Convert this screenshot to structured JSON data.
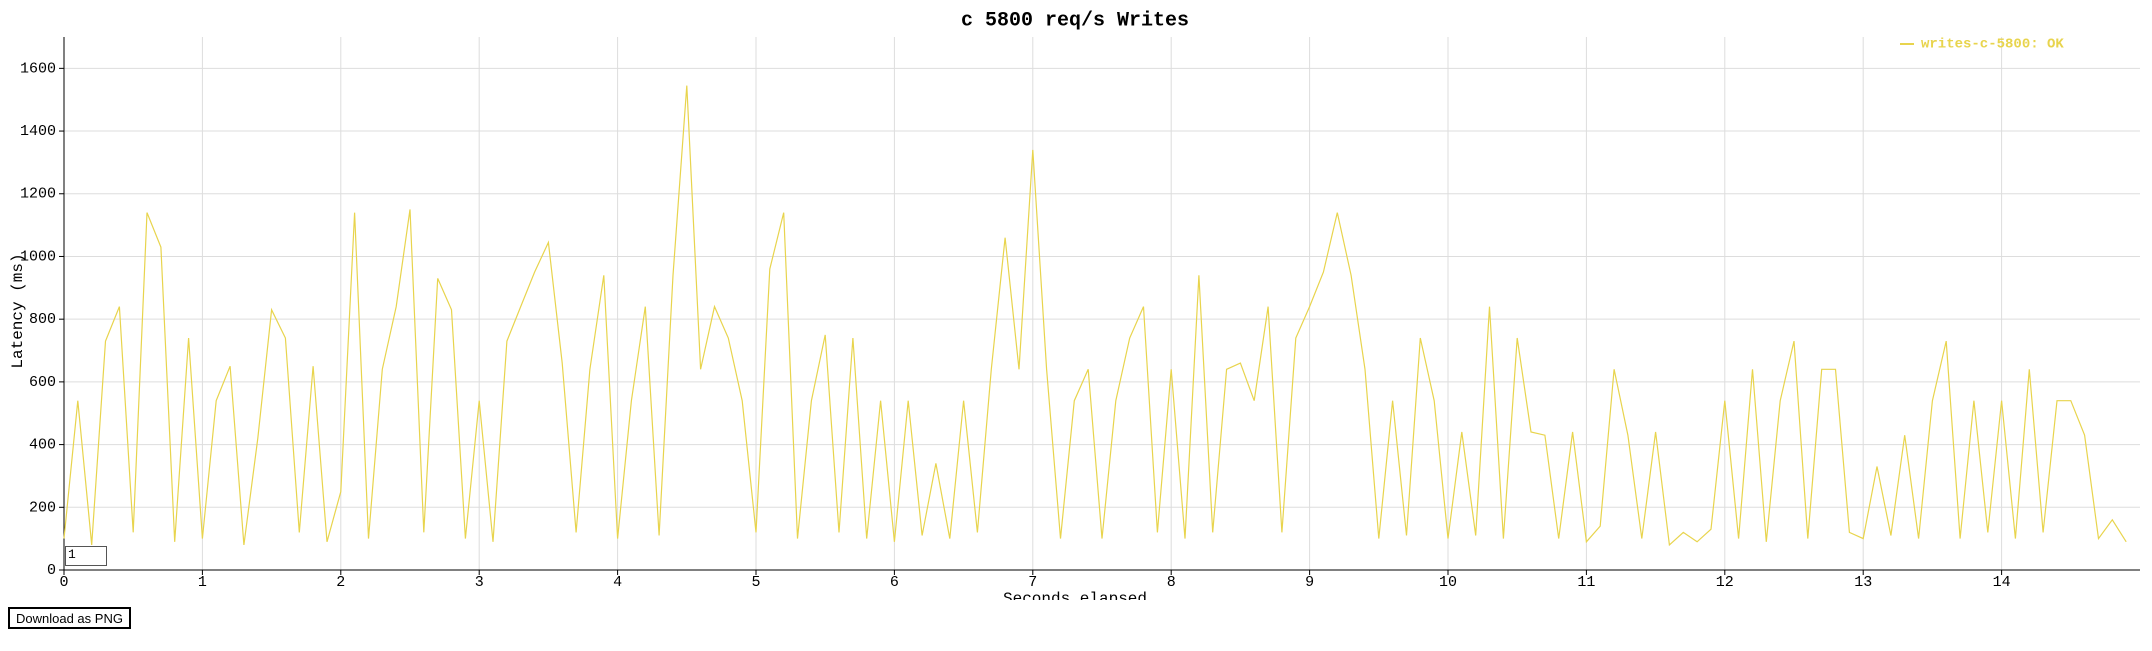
{
  "chart_data": {
    "type": "line",
    "title": "c 5800 req/s Writes",
    "x_label": "Seconds elapsed",
    "y_label": "Latency (ms)",
    "xlim": [
      0,
      15
    ],
    "ylim": [
      0,
      1700
    ],
    "xticks": [
      0,
      1,
      2,
      3,
      4,
      5,
      6,
      7,
      8,
      9,
      10,
      11,
      12,
      13,
      14
    ],
    "yticks": [
      0,
      200,
      400,
      600,
      800,
      1000,
      1200,
      1400,
      1600
    ],
    "grid": true,
    "legend": "upper right",
    "x": [
      0,
      0.1,
      0.2,
      0.3,
      0.4,
      0.5,
      0.6,
      0.7,
      0.8,
      0.9,
      1,
      1.1,
      1.2,
      1.3,
      1.4,
      1.5,
      1.6,
      1.7,
      1.8,
      1.9,
      2,
      2.1,
      2.2,
      2.3,
      2.4,
      2.5,
      2.6,
      2.7,
      2.8,
      2.9,
      3,
      3.1,
      3.2,
      3.3,
      3.4,
      3.5,
      3.6,
      3.7,
      3.8,
      3.9,
      4,
      4.1,
      4.2,
      4.3,
      4.4,
      4.5,
      4.6,
      4.7,
      4.8,
      4.9,
      5,
      5.1,
      5.2,
      5.3,
      5.4,
      5.5,
      5.6,
      5.7,
      5.8,
      5.9,
      6,
      6.1,
      6.2,
      6.3,
      6.4,
      6.5,
      6.6,
      6.7,
      6.8,
      6.9,
      7,
      7.1,
      7.2,
      7.3,
      7.4,
      7.5,
      7.6,
      7.7,
      7.8,
      7.9,
      8,
      8.1,
      8.2,
      8.3,
      8.4,
      8.5,
      8.6,
      8.7,
      8.8,
      8.9,
      9,
      9.1,
      9.2,
      9.3,
      9.4,
      9.5,
      9.6,
      9.7,
      9.8,
      9.9,
      10,
      10.1,
      10.2,
      10.3,
      10.4,
      10.5,
      10.6,
      10.7,
      10.8,
      10.9,
      11,
      11.1,
      11.2,
      11.3,
      11.4,
      11.5,
      11.6,
      11.7,
      11.8,
      11.9,
      12,
      12.1,
      12.2,
      12.3,
      12.4,
      12.5,
      12.6,
      12.7,
      12.8,
      12.9,
      13,
      13.1,
      13.2,
      13.3,
      13.4,
      13.5,
      13.6,
      13.7,
      13.8,
      13.9,
      14,
      14.1,
      14.2,
      14.3,
      14.4,
      14.5,
      14.6,
      14.7,
      14.8,
      14.9
    ],
    "series": [
      {
        "name": "writes-c-5800: OK",
        "color": "#e8d44d",
        "values": [
          100,
          540,
          80,
          730,
          840,
          120,
          1140,
          1030,
          90,
          740,
          100,
          540,
          650,
          80,
          420,
          830,
          740,
          120,
          650,
          90,
          250,
          1140,
          100,
          640,
          840,
          1150,
          120,
          930,
          830,
          100,
          540,
          90,
          730,
          840,
          950,
          1045,
          660,
          120,
          640,
          940,
          100,
          540,
          840,
          110,
          940,
          1545,
          640,
          840,
          740,
          540,
          120,
          960,
          1140,
          100,
          540,
          750,
          120,
          740,
          100,
          540,
          90,
          540,
          110,
          340,
          100,
          540,
          120,
          640,
          1060,
          640,
          1340,
          640,
          100,
          540,
          640,
          100,
          540,
          740,
          840,
          120,
          640,
          100,
          940,
          120,
          640,
          660,
          540,
          840,
          120,
          740,
          840,
          950,
          1140,
          940,
          640,
          100,
          540,
          110,
          740,
          540,
          100,
          440,
          110,
          840,
          100,
          740,
          440,
          430,
          100,
          440,
          90,
          140,
          640,
          430,
          100,
          440,
          80,
          120,
          90,
          130,
          540,
          100,
          640,
          90,
          540,
          730,
          100,
          640,
          640,
          120,
          100,
          330,
          110,
          430,
          100,
          540,
          730,
          100,
          540,
          120,
          540,
          100,
          640,
          120,
          540,
          540,
          430,
          100,
          160,
          90
        ]
      }
    ]
  },
  "ui": {
    "input_value": "1",
    "download_button": "Download as PNG"
  }
}
